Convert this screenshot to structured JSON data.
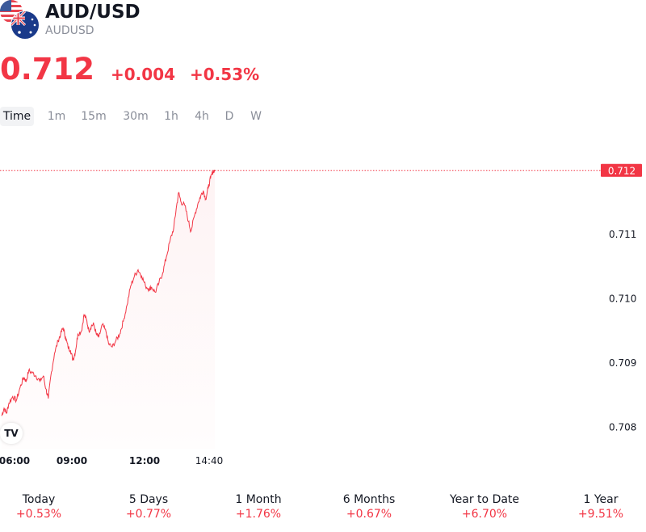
{
  "header": {
    "title": "AUD/USD",
    "symbol": "AUDUSD",
    "price": "0.712",
    "change_abs": "+0.004",
    "change_pct": "+0.53%"
  },
  "timeframes": [
    {
      "label": "Time",
      "active": true
    },
    {
      "label": "1m",
      "active": false
    },
    {
      "label": "15m",
      "active": false
    },
    {
      "label": "30m",
      "active": false
    },
    {
      "label": "1h",
      "active": false
    },
    {
      "label": "4h",
      "active": false
    },
    {
      "label": "D",
      "active": false
    },
    {
      "label": "W",
      "active": false
    }
  ],
  "colors": {
    "accent": "#f23645",
    "text": "#131722",
    "muted": "#8a8e99"
  },
  "chart_data": {
    "type": "line",
    "xlabel": "",
    "ylabel": "",
    "x_ticks": [
      "06:00",
      "09:00",
      "12:00",
      "14:40"
    ],
    "x_range_hours": [
      6.0,
      14.67
    ],
    "ylim": [
      0.70767,
      0.71238
    ],
    "y_ticks": [
      0.708,
      0.709,
      0.71,
      0.711
    ],
    "y_tick_labels": [
      "0.708",
      "0.709",
      "0.710",
      "0.711"
    ],
    "last_price_label": "0.712",
    "grid": false,
    "series": [
      {
        "points": [
          [
            6.0,
            0.70818
          ],
          [
            6.1,
            0.7083
          ],
          [
            6.2,
            0.70822
          ],
          [
            6.3,
            0.70838
          ],
          [
            6.45,
            0.70848
          ],
          [
            6.6,
            0.70842
          ],
          [
            6.75,
            0.70862
          ],
          [
            6.9,
            0.70878
          ],
          [
            7.0,
            0.70872
          ],
          [
            7.1,
            0.70888
          ],
          [
            7.25,
            0.70885
          ],
          [
            7.4,
            0.7088
          ],
          [
            7.55,
            0.70872
          ],
          [
            7.7,
            0.7088
          ],
          [
            7.8,
            0.7086
          ],
          [
            7.9,
            0.70845
          ],
          [
            8.0,
            0.7088
          ],
          [
            8.15,
            0.70915
          ],
          [
            8.3,
            0.70935
          ],
          [
            8.4,
            0.70945
          ],
          [
            8.5,
            0.70955
          ],
          [
            8.6,
            0.7094
          ],
          [
            8.7,
            0.70925
          ],
          [
            8.8,
            0.7092
          ],
          [
            8.9,
            0.70905
          ],
          [
            9.0,
            0.70918
          ],
          [
            9.1,
            0.70945
          ],
          [
            9.25,
            0.7095
          ],
          [
            9.35,
            0.70975
          ],
          [
            9.45,
            0.70968
          ],
          [
            9.55,
            0.7095
          ],
          [
            9.65,
            0.70958
          ],
          [
            9.75,
            0.7096
          ],
          [
            9.85,
            0.70945
          ],
          [
            9.95,
            0.7094
          ],
          [
            10.1,
            0.7096
          ],
          [
            10.25,
            0.70948
          ],
          [
            10.35,
            0.7093
          ],
          [
            10.5,
            0.70925
          ],
          [
            10.65,
            0.70935
          ],
          [
            10.8,
            0.70945
          ],
          [
            10.95,
            0.70965
          ],
          [
            11.1,
            0.7099
          ],
          [
            11.25,
            0.7102
          ],
          [
            11.4,
            0.71035
          ],
          [
            11.55,
            0.71045
          ],
          [
            11.7,
            0.71035
          ],
          [
            11.85,
            0.7102
          ],
          [
            12.0,
            0.71015
          ],
          [
            12.1,
            0.71018
          ],
          [
            12.25,
            0.7101
          ],
          [
            12.4,
            0.71025
          ],
          [
            12.55,
            0.7104
          ],
          [
            12.7,
            0.71065
          ],
          [
            12.85,
            0.7109
          ],
          [
            13.0,
            0.7111
          ],
          [
            13.1,
            0.7114
          ],
          [
            13.2,
            0.71165
          ],
          [
            13.3,
            0.7115
          ],
          [
            13.45,
            0.71145
          ],
          [
            13.6,
            0.7112
          ],
          [
            13.7,
            0.71105
          ],
          [
            13.85,
            0.7113
          ],
          [
            14.0,
            0.7115
          ],
          [
            14.1,
            0.7116
          ],
          [
            14.2,
            0.71168
          ],
          [
            14.3,
            0.71155
          ],
          [
            14.4,
            0.71172
          ],
          [
            14.5,
            0.71188
          ],
          [
            14.6,
            0.71198
          ],
          [
            14.67,
            0.712
          ]
        ]
      }
    ]
  },
  "periods": [
    {
      "label": "Today",
      "value": "+0.53%"
    },
    {
      "label": "5 Days",
      "value": "+0.77%"
    },
    {
      "label": "1 Month",
      "value": "+1.76%"
    },
    {
      "label": "6 Months",
      "value": "+0.67%"
    },
    {
      "label": "Year to Date",
      "value": "+6.70%"
    },
    {
      "label": "1 Year",
      "value": "+9.51%"
    }
  ]
}
